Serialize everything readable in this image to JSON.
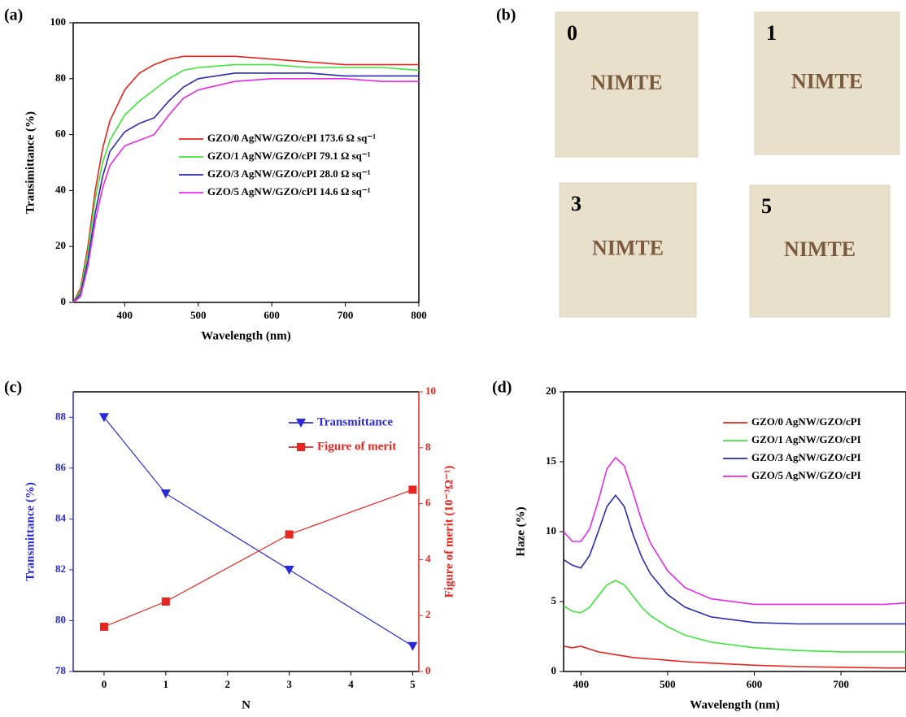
{
  "chart_data": [
    {
      "type": "line",
      "panel_label": "(a)",
      "xlabel": "Wavelength (nm)",
      "ylabel": "Transimittance (%)",
      "x": [
        330,
        340,
        350,
        360,
        370,
        380,
        400,
        420,
        440,
        460,
        480,
        500,
        550,
        600,
        650,
        700,
        750,
        800
      ],
      "xlim": [
        330,
        800
      ],
      "xticks": [
        400,
        500,
        600,
        700,
        800
      ],
      "ylim": [
        0,
        100
      ],
      "yticks": [
        0,
        20,
        40,
        60,
        80,
        100
      ],
      "legend": "lower right",
      "series": [
        {
          "name": "GZO/0 AgNW/GZO/cPI 173.6 Ω sq⁻¹",
          "color": "#e8241e",
          "values": [
            0,
            5,
            20,
            40,
            55,
            65,
            76,
            82,
            85,
            87,
            88,
            88,
            88,
            87,
            86,
            85,
            85,
            85
          ]
        },
        {
          "name": "GZO/1 AgNW/GZO/cPI 79.1 Ω sq⁻¹",
          "color": "#3ee63b",
          "values": [
            0,
            4,
            18,
            37,
            50,
            58,
            67,
            72,
            76,
            80,
            83,
            84,
            85,
            85,
            84,
            84,
            84,
            83
          ]
        },
        {
          "name": "GZO/3 AgNW/GZO/cPI 28.0 Ω sq⁻¹",
          "color": "#2a2ab0",
          "values": [
            0,
            3,
            15,
            32,
            45,
            54,
            61,
            64,
            66,
            72,
            77,
            80,
            82,
            82,
            82,
            81,
            81,
            81
          ]
        },
        {
          "name": "GZO/5 AgNW/GZO/cPI 14.6 Ω sq⁻¹",
          "color": "#e82ae8",
          "values": [
            0,
            2,
            13,
            29,
            41,
            49,
            56,
            58,
            60,
            67,
            73,
            76,
            79,
            80,
            80,
            80,
            79,
            79
          ]
        }
      ]
    },
    {
      "type": "line",
      "panel_label": "(c)",
      "xlabel": "N",
      "ylabel": "Transmittance (%)",
      "y2label": "Figure of merit (10⁻³Ω⁻¹)",
      "x": [
        0,
        1,
        3,
        5
      ],
      "xlim": [
        -0.5,
        5.1
      ],
      "xticks": [
        0,
        1,
        2,
        3,
        4,
        5
      ],
      "ylim": [
        78,
        89
      ],
      "yticks": [
        78,
        80,
        82,
        84,
        86,
        88
      ],
      "y2lim": [
        0,
        10
      ],
      "y2ticks": [
        0,
        2,
        4,
        6,
        8,
        10
      ],
      "legend": "upper right",
      "series": [
        {
          "name": "Transmittance",
          "color": "#2a2ad6",
          "marker": "triangle-down",
          "values": [
            88,
            85,
            82,
            79
          ]
        },
        {
          "name": "Figure of merit",
          "color": "#e8241e",
          "marker": "square",
          "axis": "y2",
          "values": [
            1.6,
            2.5,
            4.9,
            6.5
          ]
        }
      ]
    },
    {
      "type": "line",
      "panel_label": "(d)",
      "xlabel": "Wavelength (nm)",
      "ylabel": "Haze (%)",
      "x": [
        380,
        390,
        400,
        410,
        420,
        430,
        440,
        450,
        460,
        470,
        480,
        500,
        520,
        550,
        600,
        650,
        700,
        750,
        775
      ],
      "xlim": [
        380,
        775
      ],
      "xticks": [
        400,
        500,
        600,
        700
      ],
      "ylim": [
        0,
        20
      ],
      "yticks": [
        0,
        5,
        10,
        15,
        20
      ],
      "legend": "upper right",
      "series": [
        {
          "name": "GZO/0 AgNW/GZO/cPI",
          "color": "#e8241e",
          "values": [
            1.8,
            1.7,
            1.8,
            1.6,
            1.4,
            1.3,
            1.2,
            1.1,
            1.0,
            0.95,
            0.9,
            0.8,
            0.7,
            0.6,
            0.45,
            0.35,
            0.3,
            0.25,
            0.25
          ]
        },
        {
          "name": "GZO/1 AgNW/GZO/cPI",
          "color": "#3ee63b",
          "values": [
            4.7,
            4.3,
            4.2,
            4.6,
            5.4,
            6.2,
            6.5,
            6.2,
            5.4,
            4.6,
            4.0,
            3.2,
            2.6,
            2.1,
            1.7,
            1.5,
            1.4,
            1.4,
            1.4
          ]
        },
        {
          "name": "GZO/3 AgNW/GZO/cPI",
          "color": "#2a2ab0",
          "values": [
            8.0,
            7.6,
            7.4,
            8.3,
            10.0,
            11.8,
            12.6,
            11.8,
            9.8,
            8.2,
            7.0,
            5.5,
            4.6,
            3.9,
            3.5,
            3.4,
            3.4,
            3.4,
            3.4
          ]
        },
        {
          "name": "GZO/5 AgNW/GZO/cPI",
          "color": "#e82ae8",
          "values": [
            10.0,
            9.3,
            9.3,
            10.2,
            12.2,
            14.5,
            15.3,
            14.7,
            12.8,
            10.8,
            9.2,
            7.2,
            6.0,
            5.2,
            4.8,
            4.8,
            4.8,
            4.8,
            4.9
          ]
        }
      ]
    }
  ],
  "photo_panel": {
    "panel_label": "(b)",
    "photos": [
      {
        "number": "0",
        "text": "NIMTE"
      },
      {
        "number": "1",
        "text": "NIMTE"
      },
      {
        "number": "3",
        "text": "NIMTE"
      },
      {
        "number": "5",
        "text": "NIMTE"
      }
    ]
  }
}
